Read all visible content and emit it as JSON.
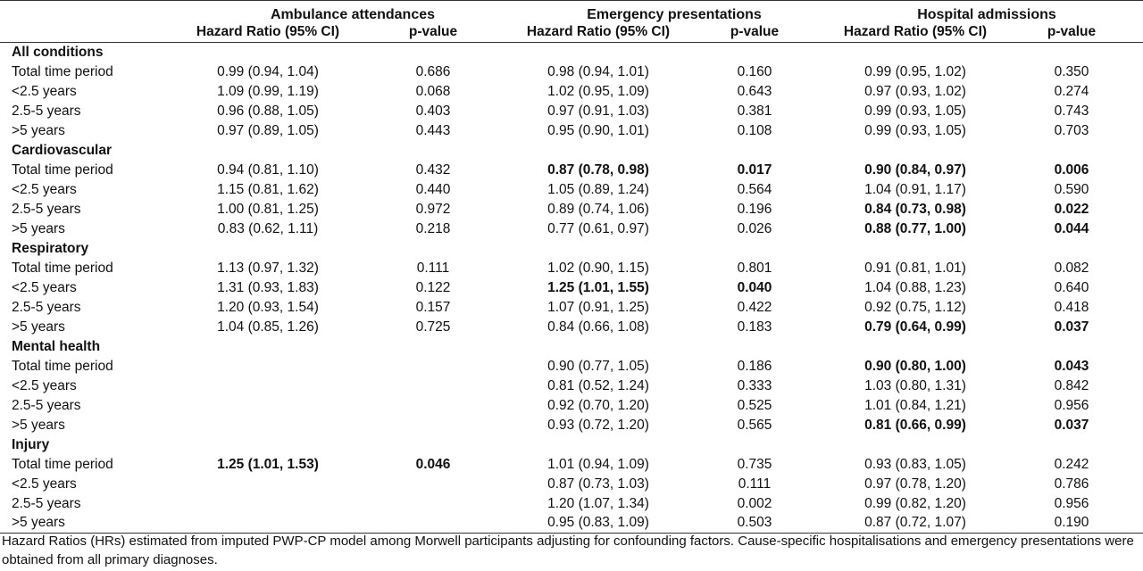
{
  "header": {
    "groups": [
      "Ambulance attendances",
      "Emergency presentations",
      "Hospital admissions"
    ],
    "hr_label": "Hazard Ratio (95% CI)",
    "p_label": "p-value"
  },
  "sections": [
    {
      "title": "All conditions",
      "rows": [
        {
          "label": "Total time period",
          "cells": [
            {
              "hr": "0.99 (0.94, 1.04)",
              "p": "0.686",
              "bold": false
            },
            {
              "hr": "0.98 (0.94, 1.01)",
              "p": "0.160",
              "bold": false
            },
            {
              "hr": "0.99 (0.95, 1.02)",
              "p": "0.350",
              "bold": false
            }
          ]
        },
        {
          "label": "<2.5 years",
          "cells": [
            {
              "hr": "1.09 (0.99, 1.19)",
              "p": "0.068",
              "bold": false
            },
            {
              "hr": "1.02 (0.95, 1.09)",
              "p": "0.643",
              "bold": false
            },
            {
              "hr": "0.97 (0.93, 1.02)",
              "p": "0.274",
              "bold": false
            }
          ]
        },
        {
          "label": "2.5-5 years",
          "cells": [
            {
              "hr": "0.96 (0.88, 1.05)",
              "p": "0.403",
              "bold": false
            },
            {
              "hr": "0.97 (0.91, 1.03)",
              "p": "0.381",
              "bold": false
            },
            {
              "hr": "0.99 (0.93, 1.05)",
              "p": "0.743",
              "bold": false
            }
          ]
        },
        {
          "label": ">5 years",
          "cells": [
            {
              "hr": "0.97 (0.89, 1.05)",
              "p": "0.443",
              "bold": false
            },
            {
              "hr": "0.95 (0.90, 1.01)",
              "p": "0.108",
              "bold": false
            },
            {
              "hr": "0.99 (0.93, 1.05)",
              "p": "0.703",
              "bold": false
            }
          ]
        }
      ]
    },
    {
      "title": "Cardiovascular",
      "rows": [
        {
          "label": "Total time period",
          "cells": [
            {
              "hr": "0.94 (0.81, 1.10)",
              "p": "0.432",
              "bold": false
            },
            {
              "hr": "0.87 (0.78, 0.98)",
              "p": "0.017",
              "bold": true
            },
            {
              "hr": "0.90 (0.84, 0.97)",
              "p": "0.006",
              "bold": true
            }
          ]
        },
        {
          "label": "<2.5 years",
          "cells": [
            {
              "hr": "1.15 (0.81, 1.62)",
              "p": "0.440",
              "bold": false
            },
            {
              "hr": "1.05 (0.89, 1.24)",
              "p": "0.564",
              "bold": false
            },
            {
              "hr": "1.04 (0.91, 1.17)",
              "p": "0.590",
              "bold": false
            }
          ]
        },
        {
          "label": "2.5-5 years",
          "cells": [
            {
              "hr": "1.00 (0.81, 1.25)",
              "p": "0.972",
              "bold": false
            },
            {
              "hr": "0.89 (0.74, 1.06)",
              "p": "0.196",
              "bold": false
            },
            {
              "hr": "0.84 (0.73, 0.98)",
              "p": "0.022",
              "bold": true
            }
          ]
        },
        {
          "label": ">5 years",
          "cells": [
            {
              "hr": "0.83 (0.62, 1.11)",
              "p": "0.218",
              "bold": false
            },
            {
              "hr": "0.77 (0.61, 0.97)",
              "p": "0.026",
              "bold": false
            },
            {
              "hr": "0.88 (0.77, 1.00)",
              "p": "0.044",
              "bold": true
            }
          ]
        }
      ]
    },
    {
      "title": "Respiratory",
      "rows": [
        {
          "label": "Total time period",
          "cells": [
            {
              "hr": "1.13 (0.97, 1.32)",
              "p": "0.111",
              "bold": false
            },
            {
              "hr": "1.02 (0.90, 1.15)",
              "p": "0.801",
              "bold": false
            },
            {
              "hr": "0.91 (0.81, 1.01)",
              "p": "0.082",
              "bold": false
            }
          ]
        },
        {
          "label": "<2.5 years",
          "cells": [
            {
              "hr": "1.31 (0.93, 1.83)",
              "p": "0.122",
              "bold": false
            },
            {
              "hr": "1.25 (1.01, 1.55)",
              "p": "0.040",
              "bold": true
            },
            {
              "hr": "1.04 (0.88, 1.23)",
              "p": "0.640",
              "bold": false
            }
          ]
        },
        {
          "label": "2.5-5 years",
          "cells": [
            {
              "hr": "1.20 (0.93, 1.54)",
              "p": "0.157",
              "bold": false
            },
            {
              "hr": "1.07 (0.91, 1.25)",
              "p": "0.422",
              "bold": false
            },
            {
              "hr": "0.92 (0.75, 1.12)",
              "p": "0.418",
              "bold": false
            }
          ]
        },
        {
          "label": ">5 years",
          "cells": [
            {
              "hr": "1.04 (0.85, 1.26)",
              "p": "0.725",
              "bold": false
            },
            {
              "hr": "0.84 (0.66, 1.08)",
              "p": "0.183",
              "bold": false
            },
            {
              "hr": "0.79 (0.64, 0.99)",
              "p": "0.037",
              "bold": true
            }
          ]
        }
      ]
    },
    {
      "title": "Mental health",
      "rows": [
        {
          "label": "Total time period",
          "cells": [
            {
              "hr": "",
              "p": "",
              "bold": false
            },
            {
              "hr": "0.90 (0.77, 1.05)",
              "p": "0.186",
              "bold": false
            },
            {
              "hr": "0.90 (0.80, 1.00)",
              "p": "0.043",
              "bold": true
            }
          ]
        },
        {
          "label": "<2.5 years",
          "cells": [
            {
              "hr": "",
              "p": "",
              "bold": false
            },
            {
              "hr": "0.81 (0.52, 1.24)",
              "p": "0.333",
              "bold": false
            },
            {
              "hr": "1.03 (0.80, 1.31)",
              "p": "0.842",
              "bold": false
            }
          ]
        },
        {
          "label": "2.5-5 years",
          "cells": [
            {
              "hr": "",
              "p": "",
              "bold": false
            },
            {
              "hr": "0.92 (0.70, 1.20)",
              "p": "0.525",
              "bold": false
            },
            {
              "hr": "1.01 (0.84, 1.21)",
              "p": "0.956",
              "bold": false
            }
          ]
        },
        {
          "label": ">5 years",
          "cells": [
            {
              "hr": "",
              "p": "",
              "bold": false
            },
            {
              "hr": "0.93 (0.72, 1.20)",
              "p": "0.565",
              "bold": false
            },
            {
              "hr": "0.81 (0.66, 0.99)",
              "p": "0.037",
              "bold": true
            }
          ]
        }
      ]
    },
    {
      "title": "Injury",
      "rows": [
        {
          "label": "Total time period",
          "cells": [
            {
              "hr": "1.25 (1.01, 1.53)",
              "p": "0.046",
              "bold": true
            },
            {
              "hr": "1.01 (0.94, 1.09)",
              "p": "0.735",
              "bold": false
            },
            {
              "hr": "0.93 (0.83, 1.05)",
              "p": "0.242",
              "bold": false
            }
          ]
        },
        {
          "label": "<2.5 years",
          "cells": [
            {
              "hr": "",
              "p": "",
              "bold": false
            },
            {
              "hr": "0.87 (0.73, 1.03)",
              "p": "0.111",
              "bold": false
            },
            {
              "hr": "0.97 (0.78, 1.20)",
              "p": "0.786",
              "bold": false
            }
          ]
        },
        {
          "label": "2.5-5 years",
          "cells": [
            {
              "hr": "",
              "p": "",
              "bold": false
            },
            {
              "hr": "1.20 (1.07, 1.34)",
              "p": "0.002",
              "bold": false
            },
            {
              "hr": "0.99 (0.82, 1.20)",
              "p": "0.956",
              "bold": false
            }
          ]
        },
        {
          "label": ">5 years",
          "cells": [
            {
              "hr": "",
              "p": "",
              "bold": false
            },
            {
              "hr": "0.95 (0.83, 1.09)",
              "p": "0.503",
              "bold": false
            },
            {
              "hr": "0.87 (0.72, 1.07)",
              "p": "0.190",
              "bold": false
            }
          ]
        }
      ]
    }
  ],
  "footnote": "Hazard Ratios (HRs) estimated from imputed PWP-CP model among Morwell participants adjusting for confounding factors. Cause-specific hospitalisations and emergency presentations were obtained from all primary diagnoses."
}
